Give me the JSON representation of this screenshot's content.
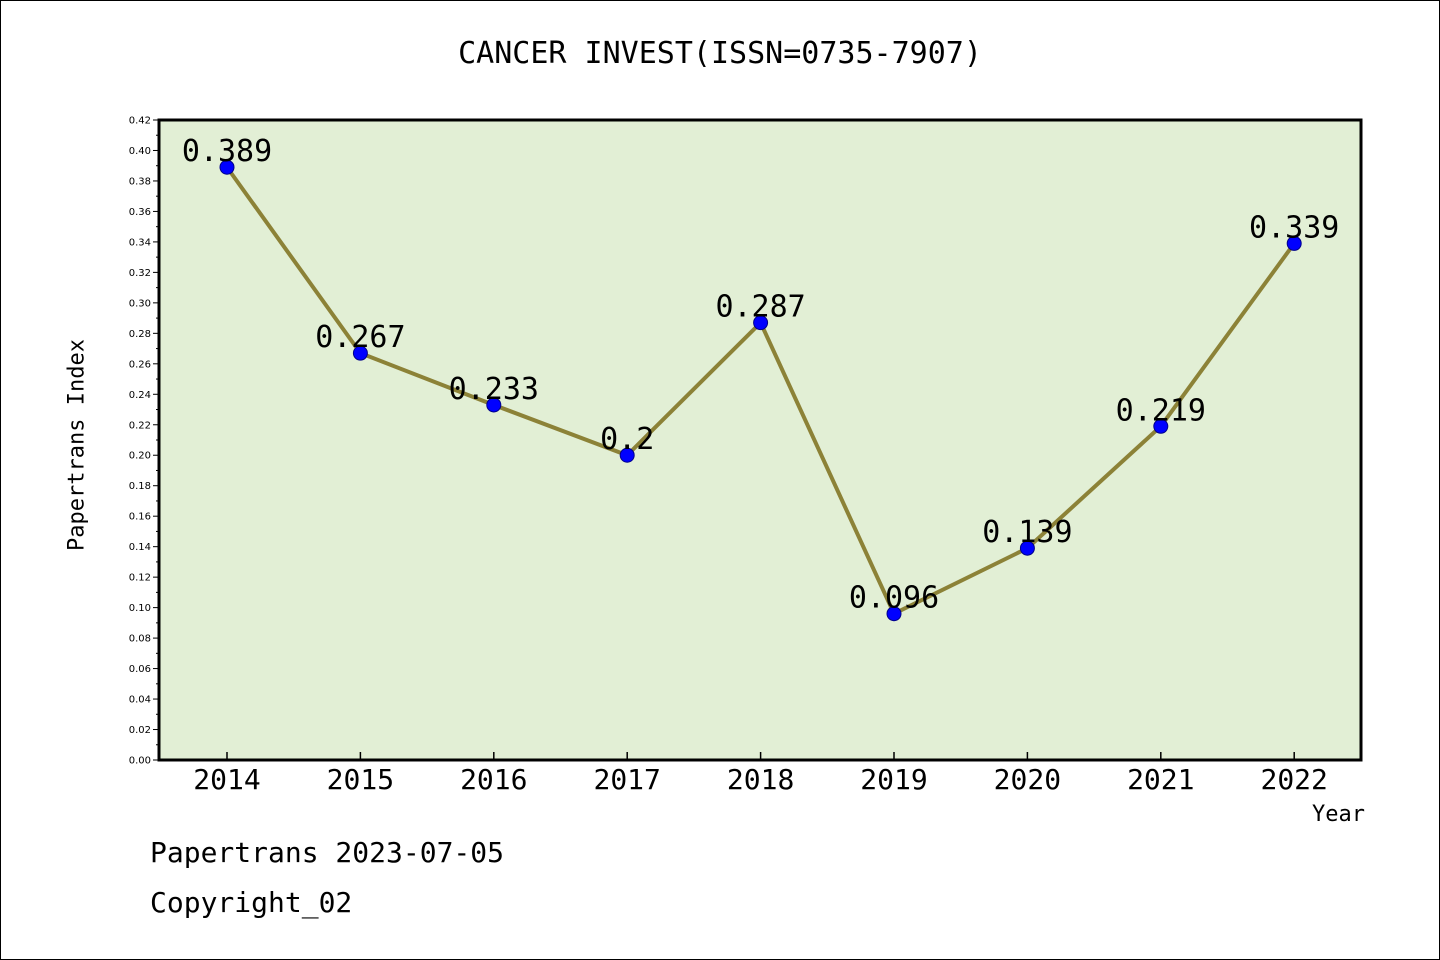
{
  "chart_data": {
    "type": "line",
    "title": "CANCER INVEST(ISSN=0735-7907)",
    "xlabel": "Year",
    "ylabel": "Papertrans Index",
    "x": [
      "2014",
      "2015",
      "2016",
      "2017",
      "2018",
      "2019",
      "2020",
      "2021",
      "2022"
    ],
    "series": [
      {
        "values": [
          0.389,
          0.267,
          0.233,
          0.2,
          0.287,
          0.096,
          0.139,
          0.219,
          0.339
        ],
        "data_labels": [
          "0.389",
          "0.267",
          "0.233",
          "0.2",
          "0.287",
          "0.096",
          "0.139",
          "0.219",
          "0.339"
        ]
      }
    ],
    "ylim": [
      0,
      0.42
    ],
    "yticks": [
      "0.00",
      "0.02",
      "0.04",
      "0.06",
      "0.08",
      "0.10",
      "0.12",
      "0.14",
      "0.16",
      "0.18",
      "0.20",
      "0.22",
      "0.24",
      "0.26",
      "0.28",
      "0.30",
      "0.32",
      "0.34",
      "0.36",
      "0.38",
      "0.40",
      "0.42"
    ],
    "grid": false,
    "legend": "none",
    "colors": {
      "plot_background": "#e2efd5",
      "line": "#8c8237",
      "marker": "#0000ff"
    }
  },
  "footer": {
    "line1": "Papertrans 2023-07-05",
    "line2": "Copyright_02"
  }
}
